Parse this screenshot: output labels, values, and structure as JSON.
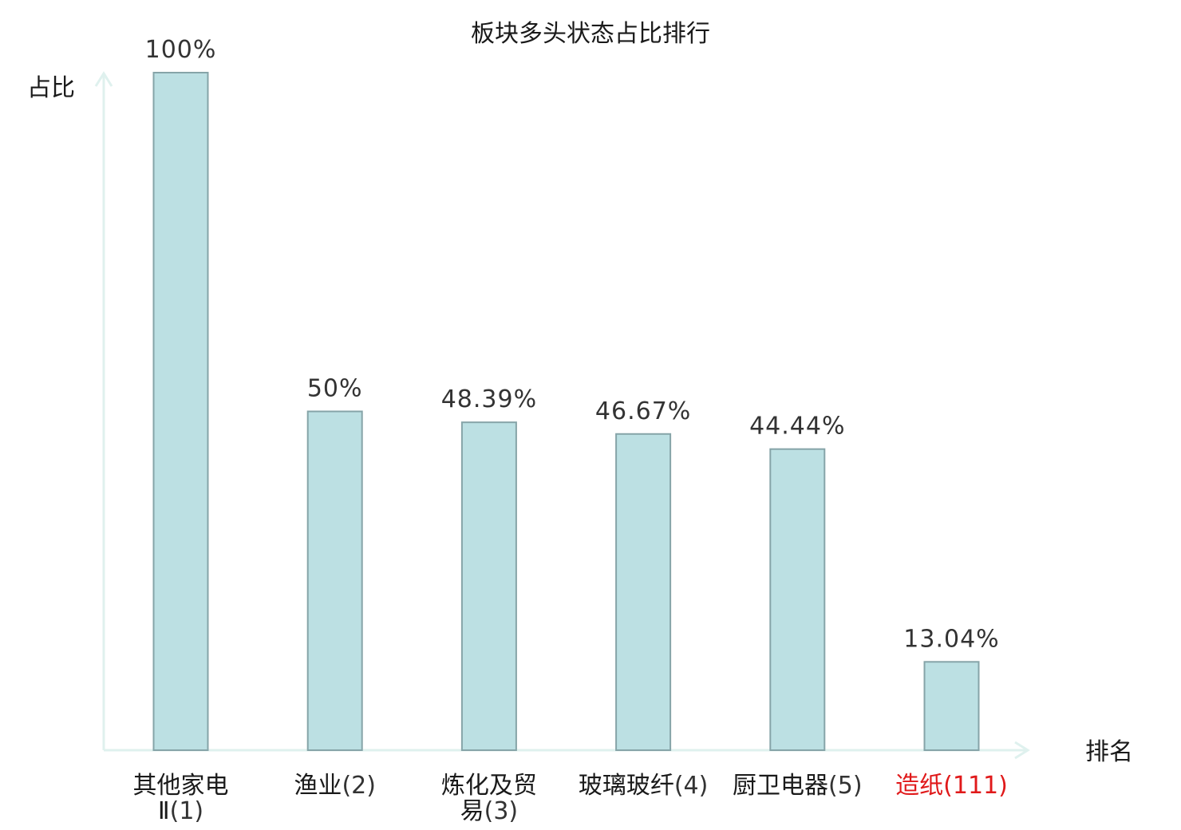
{
  "chart_data": {
    "type": "bar",
    "title": "板块多头状态占比排行",
    "ylabel": "占比",
    "xlabel": "排名",
    "ylim": [
      0,
      100
    ],
    "grid": false,
    "legend": "none",
    "categories": [
      {
        "name_lines": [
          "其他家电",
          "Ⅱ"
        ],
        "rank": "(1)",
        "highlight": false
      },
      {
        "name_lines": [
          "渔业"
        ],
        "rank": "(2)",
        "highlight": false
      },
      {
        "name_lines": [
          "炼化及贸",
          "易"
        ],
        "rank": "(3)",
        "highlight": false
      },
      {
        "name_lines": [
          "玻璃玻纤"
        ],
        "rank": "(4)",
        "highlight": false
      },
      {
        "name_lines": [
          "厨卫电器"
        ],
        "rank": "(5)",
        "highlight": false
      },
      {
        "name_lines": [
          "造纸"
        ],
        "rank": "(111)",
        "highlight": true
      }
    ],
    "values": [
      100,
      50,
      48.39,
      46.67,
      44.44,
      13.04
    ],
    "value_labels": [
      "100%",
      "50%",
      "48.39%",
      "46.67%",
      "44.44%",
      "13.04%"
    ],
    "colors": {
      "bar_fill": "#bce0e3",
      "bar_stroke": "#86a4a8",
      "axis": "#dff1ee",
      "highlight": "#e0191a"
    }
  }
}
